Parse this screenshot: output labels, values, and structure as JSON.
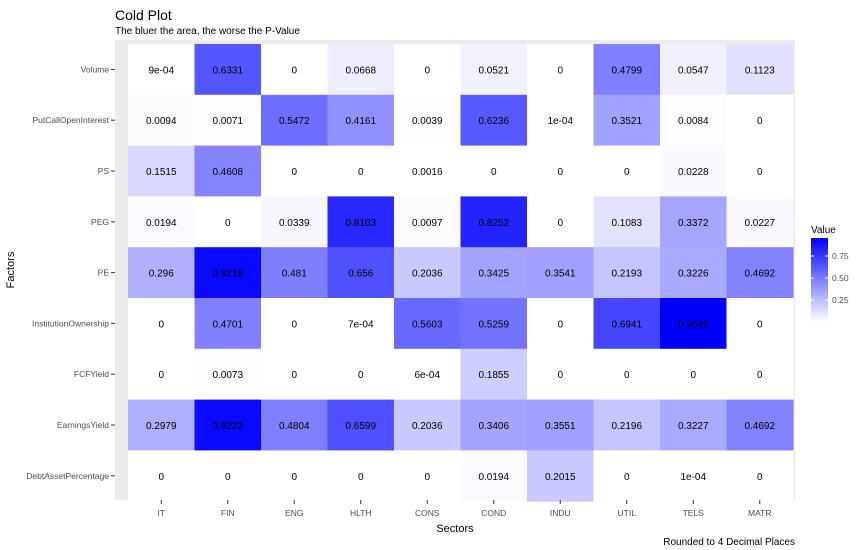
{
  "chart_data": {
    "type": "heatmap",
    "title": "Cold Plot",
    "subtitle": "The bluer the area, the worse the P-Value",
    "xlabel": "Sectors",
    "ylabel": "Factors",
    "caption": "Rounded to 4 Decimal Places",
    "x_categories": [
      "IT",
      "FIN",
      "ENG",
      "HLTH",
      "CONS",
      "COND",
      "INDU",
      "UTIL",
      "TELS",
      "MATR"
    ],
    "y_categories": [
      "Volume",
      "PutCallOpenInterest",
      "PS",
      "PEG",
      "PE",
      "InstitutionOwnership",
      "FCFYield",
      "EarningsYield",
      "DebtAssetPercentage"
    ],
    "cells": [
      [
        0.0009,
        0.6331,
        0,
        0.0668,
        0,
        0.0521,
        0,
        0.4799,
        0.0547,
        0.1123
      ],
      [
        0.0094,
        0.0071,
        0.5472,
        0.4161,
        0.0039,
        0.6236,
        0.0001,
        0.3521,
        0.0084,
        0
      ],
      [
        0.1515,
        0.4608,
        0,
        0,
        0.0016,
        0,
        0,
        0,
        0.0228,
        0
      ],
      [
        0.0194,
        0,
        0.0339,
        0.8103,
        0.0097,
        0.8252,
        0,
        0.1083,
        0.3372,
        0.0227
      ],
      [
        0.296,
        0.9218,
        0.481,
        0.656,
        0.2036,
        0.3425,
        0.3541,
        0.2193,
        0.3226,
        0.4692
      ],
      [
        0,
        0.4701,
        0,
        0.0007,
        0.5603,
        0.5259,
        0,
        0.6941,
        0.9545,
        0
      ],
      [
        0,
        0.0073,
        0,
        0,
        0.0006,
        0.1855,
        0,
        0,
        0,
        0
      ],
      [
        0.2979,
        0.9222,
        0.4804,
        0.6599,
        0.2036,
        0.3406,
        0.3551,
        0.2196,
        0.3227,
        0.4692
      ],
      [
        0,
        0,
        0,
        0,
        0,
        0.0194,
        0.2015,
        0,
        0.0001,
        0
      ]
    ],
    "cell_labels": [
      [
        "9e-04",
        "0.6331",
        "0",
        "0.0668",
        "0",
        "0.0521",
        "0",
        "0.4799",
        "0.0547",
        "0.1123"
      ],
      [
        "0.0094",
        "0.0071",
        "0.5472",
        "0.4161",
        "0.0039",
        "0.6236",
        "1e-04",
        "0.3521",
        "0.0084",
        "0"
      ],
      [
        "0.1515",
        "0.4608",
        "0",
        "0",
        "0.0016",
        "0",
        "0",
        "0",
        "0.0228",
        "0"
      ],
      [
        "0.0194",
        "0",
        "0.0339",
        "0.8103",
        "0.0097",
        "0.8252",
        "0",
        "0.1083",
        "0.3372",
        "0.0227"
      ],
      [
        "0.296",
        "0.9218",
        "0.481",
        "0.656",
        "0.2036",
        "0.3425",
        "0.3541",
        "0.2193",
        "0.3226",
        "0.4692"
      ],
      [
        "0",
        "0.4701",
        "0",
        "7e-04",
        "0.5603",
        "0.5259",
        "0",
        "0.6941",
        "0.9545",
        "0"
      ],
      [
        "0",
        "0.0073",
        "0",
        "0",
        "6e-04",
        "0.1855",
        "0",
        "0",
        "0",
        "0"
      ],
      [
        "0.2979",
        "0.9222",
        "0.4804",
        "0.6599",
        "0.2036",
        "0.3406",
        "0.3551",
        "0.2196",
        "0.3227",
        "0.4692"
      ],
      [
        "0",
        "0",
        "0",
        "0",
        "0",
        "0.0194",
        "0.2015",
        "0",
        "1e-04",
        "0"
      ]
    ],
    "value_range": [
      0,
      0.9545
    ],
    "colors": {
      "low": "#ffffff",
      "high": "#0000ff",
      "panel_background": "#ebebeb"
    },
    "legend": {
      "title": "Value",
      "placement": "right",
      "ticks": [
        0.25,
        0.5,
        0.75
      ],
      "tick_labels": [
        "0.25",
        "0.50",
        "0.75"
      ]
    }
  }
}
